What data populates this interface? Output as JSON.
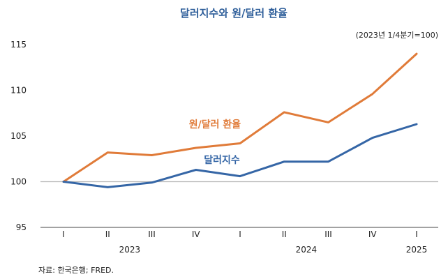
{
  "chart_data": {
    "type": "line",
    "title": "달러지수와 원/달러 환율",
    "note": "(2023년 1/4분기=100)",
    "source": "자료: 한국은행; FRED.",
    "x": [
      "I",
      "II",
      "III",
      "IV",
      "I",
      "II",
      "III",
      "IV",
      "I"
    ],
    "years": [
      {
        "label": "2023",
        "start": 0,
        "end": 3
      },
      {
        "label": "2024",
        "start": 4,
        "end": 7
      },
      {
        "label": "2025",
        "start": 8,
        "end": 8
      }
    ],
    "ylim": [
      95,
      115
    ],
    "yticks": [
      95,
      100,
      105,
      110,
      115
    ],
    "grid": false,
    "reference_line": 100,
    "series": [
      {
        "name": "원/달러 환율",
        "color": "#e07b39",
        "values": [
          100.0,
          103.2,
          102.9,
          103.7,
          104.2,
          107.6,
          106.5,
          109.6,
          114.0
        ]
      },
      {
        "name": "달러지수",
        "color": "#3566a6",
        "values": [
          100.0,
          99.4,
          99.9,
          101.3,
          100.6,
          102.2,
          102.2,
          104.8,
          106.3
        ]
      }
    ]
  }
}
